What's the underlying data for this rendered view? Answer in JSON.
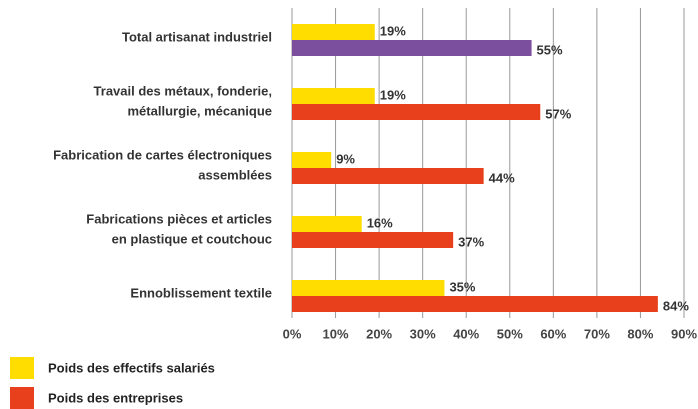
{
  "chart_data": {
    "type": "hbar",
    "categories": [
      [
        "Total artisanat industriel"
      ],
      [
        "Travail des métaux, fonderie,",
        "métallurgie, mécanique"
      ],
      [
        "Fabrication de cartes électroniques",
        "assemblées"
      ],
      [
        "Fabrications pièces et articles",
        "en plastique et coutchouc"
      ],
      [
        "Ennoblissement textile"
      ]
    ],
    "series": [
      {
        "name": "Poids des effectifs salariés",
        "color": "#ffdd00",
        "values": [
          19,
          19,
          9,
          16,
          35
        ],
        "value_labels": [
          "19%",
          "19%",
          "9%",
          "16%",
          "35%"
        ]
      },
      {
        "name": "Poids des entreprises",
        "color": "#e8401c",
        "values": [
          55,
          57,
          44,
          37,
          84
        ],
        "value_labels": [
          "55%",
          "57%",
          "44%",
          "37%",
          "84%"
        ],
        "highlight": {
          "category": 0,
          "color": "#7b4f9e"
        }
      }
    ],
    "xlim": [
      0,
      90
    ],
    "xticks": [
      {
        "value": 0,
        "label": "0%"
      },
      {
        "value": 10,
        "label": "10%"
      },
      {
        "value": 20,
        "label": "20%"
      },
      {
        "value": 30,
        "label": "30%"
      },
      {
        "value": 40,
        "label": "40%"
      },
      {
        "value": 50,
        "label": "50%"
      },
      {
        "value": 60,
        "label": "60%"
      },
      {
        "value": 70,
        "label": "70%"
      },
      {
        "value": 80,
        "label": "80%"
      },
      {
        "value": 90,
        "label": "90%"
      }
    ],
    "grid": true,
    "legend": "bottom-left"
  }
}
